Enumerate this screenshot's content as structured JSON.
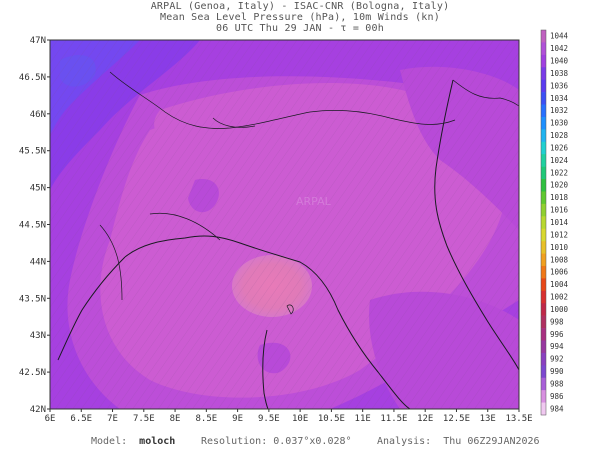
{
  "header": {
    "line1": "ARPAL (Genoa, Italy)  -  ISAC-CNR (Bologna, Italy)",
    "line2": "Mean Sea Level Pressure (hPa), 10m Winds (kn)",
    "line3": "06 UTC Thu 29 JAN  -  τ = 00h"
  },
  "map": {
    "lon_range": [
      6,
      13.5
    ],
    "lat_range": [
      42,
      47
    ],
    "lon_ticks": [
      "6E",
      "6.5E",
      "7E",
      "7.5E",
      "8E",
      "8.5E",
      "9E",
      "9.5E",
      "10E",
      "10.5E",
      "11E",
      "11.5E",
      "12E",
      "12.5E",
      "13E",
      "13.5E"
    ],
    "lat_ticks": [
      "42N",
      "42.5N",
      "43N",
      "43.5N",
      "44N",
      "44.5N",
      "45N",
      "45.5N",
      "46N",
      "46.5N",
      "47N"
    ],
    "watermark": "ARPAL",
    "pressure_field": {
      "low_center": {
        "lon": 9.5,
        "lat": 43.6,
        "value": 990
      },
      "background_min": 992,
      "northwest_max": 1002
    }
  },
  "colorbar": {
    "levels": [
      1044,
      1042,
      1040,
      1038,
      1036,
      1034,
      1032,
      1030,
      1028,
      1026,
      1024,
      1022,
      1020,
      1018,
      1016,
      1014,
      1012,
      1010,
      1008,
      1006,
      1004,
      1002,
      1000,
      998,
      996,
      994,
      992,
      990,
      988,
      986,
      984
    ],
    "colors": [
      "#c060c0",
      "#b050d8",
      "#a040e0",
      "#7a3ce8",
      "#5a3cf0",
      "#3c50f5",
      "#2870ff",
      "#1e90ff",
      "#20b4f0",
      "#20d0d0",
      "#20d0a0",
      "#20c878",
      "#30c040",
      "#60c830",
      "#90d030",
      "#b8d830",
      "#d8d830",
      "#e8c028",
      "#f0a020",
      "#f07818",
      "#e84818",
      "#d83030",
      "#c02848",
      "#b03060",
      "#a83080",
      "#9838a0",
      "#8a40c0",
      "#7c48d0",
      "#a860d8",
      "#d890e0",
      "#f0c8f0"
    ]
  },
  "footer": {
    "model_label": "Model:",
    "model_value": "moloch",
    "resolution_label": "Resolution:",
    "resolution_value": "0.037°x0.028°",
    "analysis_label": "Analysis:",
    "analysis_value": "Thu 06Z29JAN2026"
  }
}
